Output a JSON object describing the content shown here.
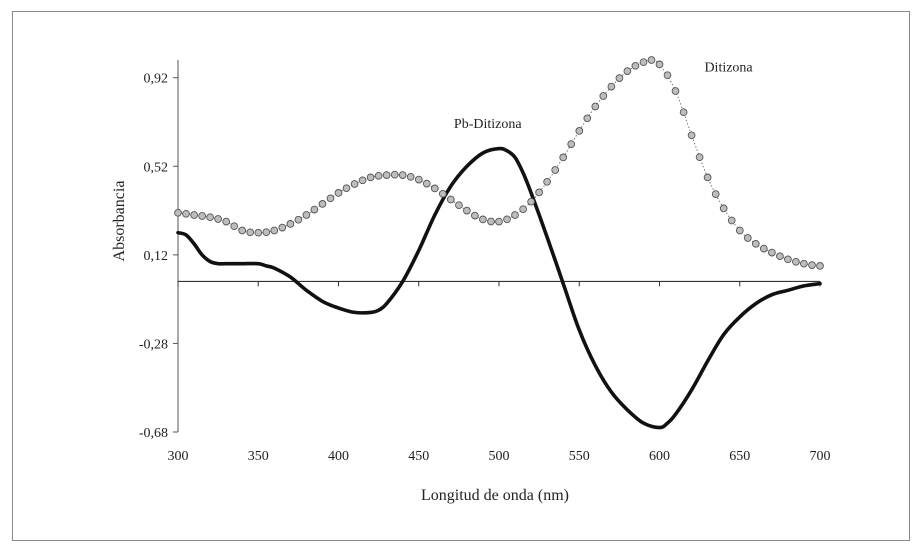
{
  "chart_data": {
    "type": "line",
    "title": "",
    "xlabel": "Longitud de onda (nm)",
    "ylabel": "Absorbancia",
    "xlim": [
      300,
      700
    ],
    "ylim": [
      -0.68,
      1.0
    ],
    "x_ticks": [
      300,
      350,
      400,
      450,
      500,
      550,
      600,
      650,
      700
    ],
    "x_tick_labels": [
      "300",
      "350",
      "400",
      "450",
      "500",
      "550",
      "600",
      "650",
      "700"
    ],
    "y_ticks": [
      0.92,
      0.52,
      0.12,
      -0.28,
      -0.68
    ],
    "y_tick_labels": [
      "0,92",
      "0,52",
      "0,12",
      "-0,28",
      "-0,68"
    ],
    "grid": false,
    "legend": "none",
    "zero_line": 0,
    "series": [
      {
        "name": "Pb-Ditizona",
        "style": "thick-solid",
        "color": "#111111",
        "x": [
          300,
          305,
          310,
          315,
          320,
          325,
          330,
          340,
          350,
          355,
          360,
          370,
          380,
          390,
          400,
          410,
          420,
          425,
          430,
          440,
          450,
          460,
          470,
          480,
          490,
          500,
          505,
          510,
          515,
          520,
          530,
          540,
          550,
          560,
          570,
          580,
          590,
          600,
          605,
          610,
          620,
          630,
          640,
          650,
          660,
          670,
          680,
          690,
          700
        ],
        "y": [
          0.22,
          0.21,
          0.17,
          0.12,
          0.09,
          0.08,
          0.08,
          0.08,
          0.08,
          0.07,
          0.06,
          0.02,
          -0.04,
          -0.09,
          -0.12,
          -0.14,
          -0.14,
          -0.13,
          -0.1,
          0.0,
          0.14,
          0.3,
          0.43,
          0.52,
          0.58,
          0.6,
          0.59,
          0.56,
          0.49,
          0.4,
          0.2,
          -0.01,
          -0.22,
          -0.38,
          -0.5,
          -0.58,
          -0.64,
          -0.66,
          -0.64,
          -0.6,
          -0.49,
          -0.36,
          -0.24,
          -0.16,
          -0.1,
          -0.06,
          -0.04,
          -0.02,
          -0.01
        ]
      },
      {
        "name": "Ditizona",
        "style": "dotted-circle-markers",
        "color": "#888888",
        "x": [
          300,
          310,
          320,
          330,
          340,
          350,
          360,
          370,
          380,
          390,
          400,
          410,
          420,
          430,
          440,
          450,
          460,
          470,
          480,
          490,
          500,
          510,
          520,
          530,
          540,
          550,
          560,
          570,
          580,
          590,
          595,
          600,
          610,
          620,
          630,
          640,
          650,
          660,
          670,
          680,
          690,
          700
        ],
        "y": [
          0.31,
          0.3,
          0.29,
          0.27,
          0.23,
          0.22,
          0.23,
          0.26,
          0.3,
          0.35,
          0.4,
          0.44,
          0.47,
          0.48,
          0.48,
          0.46,
          0.42,
          0.37,
          0.32,
          0.28,
          0.27,
          0.3,
          0.36,
          0.45,
          0.56,
          0.68,
          0.79,
          0.88,
          0.95,
          0.99,
          1.0,
          0.98,
          0.86,
          0.66,
          0.47,
          0.33,
          0.23,
          0.17,
          0.13,
          0.1,
          0.08,
          0.07
        ]
      }
    ],
    "annotations": [
      {
        "text": "Pb-Ditizona",
        "series": 0
      },
      {
        "text": "Ditizona",
        "series": 1
      }
    ]
  }
}
